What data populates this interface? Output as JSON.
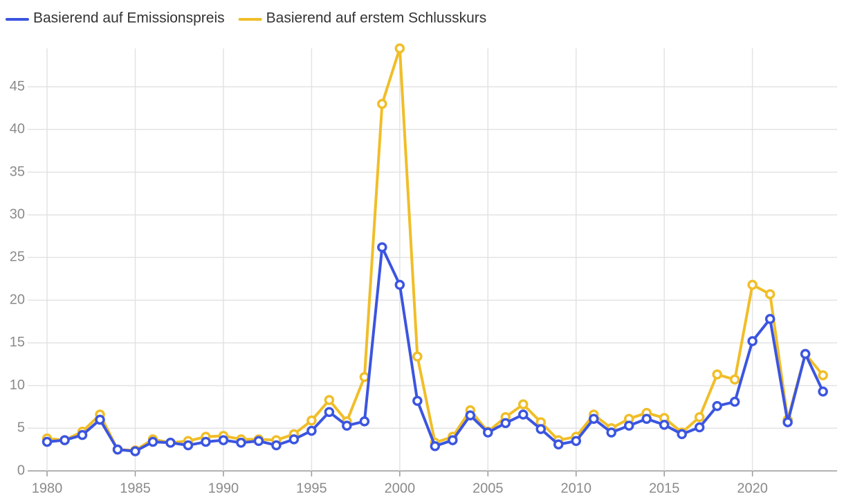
{
  "chart_data": {
    "type": "line",
    "x": [
      1980,
      1981,
      1982,
      1983,
      1984,
      1985,
      1986,
      1987,
      1988,
      1989,
      1990,
      1991,
      1992,
      1993,
      1994,
      1995,
      1996,
      1997,
      1998,
      1999,
      2000,
      2001,
      2002,
      2003,
      2004,
      2005,
      2006,
      2007,
      2008,
      2009,
      2010,
      2011,
      2012,
      2013,
      2014,
      2015,
      2016,
      2017,
      2018,
      2019,
      2020,
      2021,
      2022,
      2023,
      2024
    ],
    "series": [
      {
        "name": "Basierend auf Emissionspreis",
        "color": "#3b55e0",
        "values": [
          3.4,
          3.6,
          4.2,
          6.0,
          2.5,
          2.3,
          3.4,
          3.3,
          3.0,
          3.4,
          3.6,
          3.3,
          3.5,
          3.0,
          3.7,
          4.7,
          6.9,
          5.3,
          5.8,
          26.2,
          21.8,
          8.2,
          2.9,
          3.6,
          6.5,
          4.5,
          5.6,
          6.6,
          4.9,
          3.1,
          3.5,
          6.1,
          4.5,
          5.3,
          6.1,
          5.4,
          4.3,
          5.1,
          7.6,
          8.1,
          15.2,
          17.8,
          5.7,
          13.7,
          9.3
        ]
      },
      {
        "name": "Basierend auf erstem Schlusskurs",
        "color": "#f0be28",
        "values": [
          3.8,
          3.6,
          4.6,
          6.6,
          2.5,
          2.4,
          3.7,
          3.3,
          3.5,
          4.0,
          4.1,
          3.7,
          3.7,
          3.6,
          4.3,
          5.9,
          8.3,
          5.8,
          11.0,
          43.0,
          49.5,
          13.4,
          3.3,
          4.0,
          7.1,
          4.6,
          6.3,
          7.8,
          5.7,
          3.6,
          4.0,
          6.6,
          5.0,
          6.1,
          6.8,
          6.2,
          4.5,
          6.3,
          11.3,
          10.7,
          21.8,
          20.7,
          6.0,
          13.7,
          11.2
        ]
      }
    ],
    "xlim": [
      1978.9,
      2024.8
    ],
    "xticks": [
      1980,
      1985,
      1990,
      1995,
      2000,
      2005,
      2010,
      2015,
      2020
    ],
    "ylim": [
      0,
      49.5
    ],
    "yticks": [
      0,
      5,
      10,
      15,
      20,
      25,
      30,
      35,
      40,
      45
    ],
    "grid": true
  }
}
